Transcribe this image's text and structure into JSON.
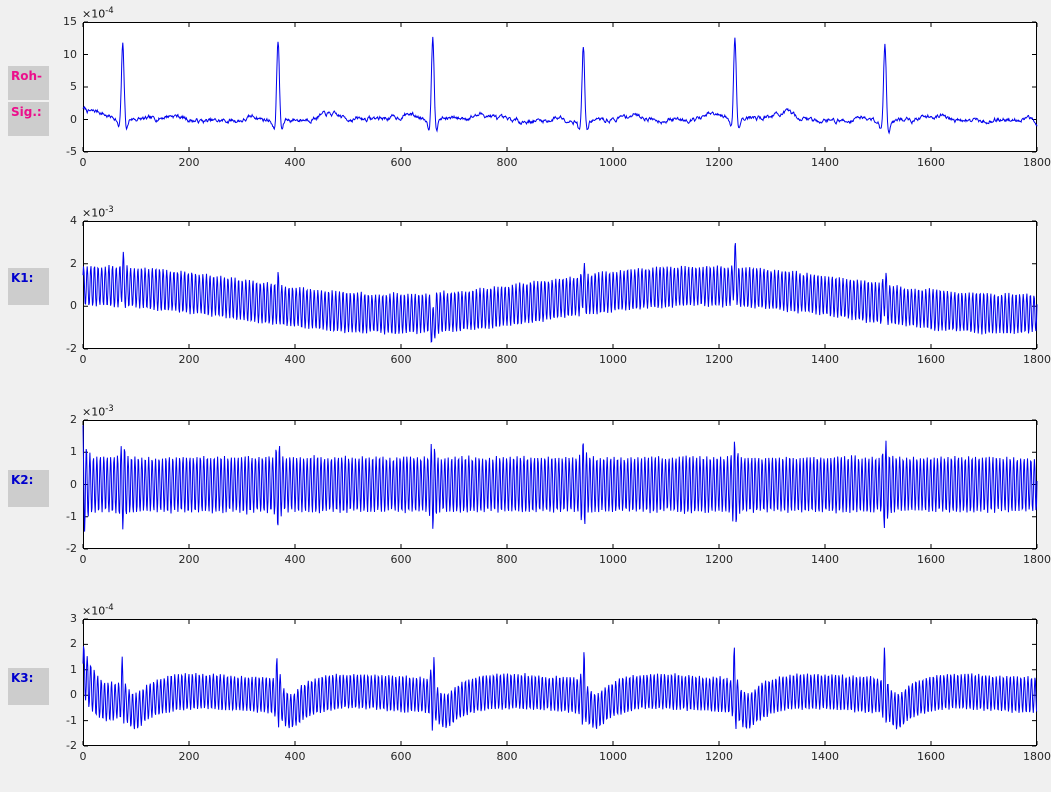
{
  "colors": {
    "figure_bg": "#f0f0f0",
    "axes_bg": "#ffffff",
    "frame": "#000000",
    "tick_label": "#262626",
    "label_bg": "#cdcdcd",
    "raw_label_color": "#ec0f8c",
    "channel_label_color": "#0000cd",
    "trace_color": "#0000ee"
  },
  "side_labels": [
    {
      "text": "Roh-",
      "color": "#ec0f8c"
    },
    {
      "text": "Sig.:",
      "color": "#ec0f8c"
    },
    {
      "text": "K1:",
      "color": "#0000cd"
    },
    {
      "text": "K2:",
      "color": "#0000cd"
    },
    {
      "text": "K3:",
      "color": "#0000cd"
    }
  ],
  "chart_data": [
    {
      "type": "line",
      "name": "Roh-Sig.",
      "line_color": "#0000ee",
      "x": {
        "min": 0,
        "max": 1800,
        "ticks": [
          0,
          200,
          400,
          600,
          800,
          1000,
          1200,
          1400,
          1600,
          1800
        ]
      },
      "y": {
        "min": -5,
        "max": 15,
        "ticks": [
          15,
          10,
          5,
          0,
          -5
        ],
        "exp_base": "×10",
        "exponent": "-4"
      },
      "grid": false,
      "signal": {
        "kind": "ecg",
        "seed": 7,
        "beat_positions": [
          75,
          368,
          660,
          944,
          1230,
          1513
        ],
        "r_amplitudes": [
          11.4,
          12.4,
          12.8,
          11.7,
          12.5,
          11.9
        ],
        "p_amp": 0.55,
        "q_amp": -1.5,
        "s_amp": -1.6,
        "t_amp": 0.85,
        "wander": [
          {
            "amp": 0.22,
            "period": 640,
            "phase": 2.0
          },
          {
            "amp": 0.12,
            "period": 300,
            "phase": 0.8
          }
        ],
        "noise": {
          "rho": 0.8,
          "scale": 0.5
        },
        "start": {
          "amp": 1.5,
          "tau": 22
        },
        "end_dip": {
          "amp": -1.0,
          "tau": 8
        }
      }
    },
    {
      "type": "line",
      "name": "K1",
      "line_color": "#0000ee",
      "x": {
        "min": 0,
        "max": 1800,
        "ticks": [
          0,
          200,
          400,
          600,
          800,
          1000,
          1200,
          1400,
          1600,
          1800
        ]
      },
      "y": {
        "min": -2,
        "max": 4,
        "ticks": [
          4,
          2,
          0,
          -2
        ],
        "exp_base": "×10",
        "exponent": "-3"
      },
      "grid": false,
      "signal": {
        "kind": "am_osc",
        "seed": 11,
        "carrier_period": 6.8,
        "carrier_phase": 0.6,
        "phase_jitter": 0.1,
        "amp": 0.95,
        "amp_noise": 0.1,
        "mean_offset": 0.3,
        "mean_amp": 0.65,
        "mean_period": 1160,
        "mean_center": 1170,
        "beat_positions": [
          75,
          368,
          660,
          944,
          1230,
          1513
        ],
        "spike_heights": [
          0.6,
          0.4,
          -0.85,
          0.6,
          1.0,
          0.7
        ],
        "spike_sigma": 2.2,
        "amp_bump": 0.2,
        "bump_sigma": 3.0
      }
    },
    {
      "type": "line",
      "name": "K2",
      "line_color": "#0000ee",
      "x": {
        "min": 0,
        "max": 1800,
        "ticks": [
          0,
          200,
          400,
          600,
          800,
          1000,
          1200,
          1400,
          1600,
          1800
        ]
      },
      "y": {
        "min": -2,
        "max": 2,
        "ticks": [
          2,
          1,
          0,
          -1,
          -2
        ],
        "exp_base": "×10",
        "exponent": "-3"
      },
      "grid": false,
      "signal": {
        "kind": "osc",
        "seed": 23,
        "carrier_period": 6.5,
        "carrier_phase": 1.7,
        "phase_jitter": 0.1,
        "amp": 0.86,
        "amp_noise": 0.08,
        "beat_positions": [
          75,
          368,
          660,
          944,
          1230,
          1513
        ],
        "beat_bump": 0.55,
        "bump_sigma": 3.5,
        "start": {
          "amp": 1.0,
          "tau": 6
        },
        "mean_noise": 0.05
      }
    },
    {
      "type": "line",
      "name": "K3",
      "line_color": "#0000ee",
      "x": {
        "min": 0,
        "max": 1800,
        "ticks": [
          0,
          200,
          400,
          600,
          800,
          1000,
          1200,
          1400,
          1600,
          1800
        ]
      },
      "y": {
        "min": -2,
        "max": 3,
        "ticks": [
          3,
          2,
          1,
          0,
          -1,
          -2
        ],
        "exp_base": "×10",
        "exponent": "-4"
      },
      "grid": false,
      "signal": {
        "kind": "osc_dips",
        "seed": 31,
        "carrier_period": 6.6,
        "carrier_phase": 0.2,
        "phase_jitter": 0.12,
        "amp": 0.7,
        "amp_noise": 0.1,
        "beat_positions": [
          75,
          368,
          660,
          944,
          1230,
          1513
        ],
        "spike_amp": [
          0.7,
          0.9,
          1.1,
          0.95,
          1.1,
          0.95
        ],
        "spike_sigma": 2.5,
        "spike_mean": {
          "amp": 0.5,
          "sigma": 2.5
        },
        "dip": {
          "amp": -0.5,
          "offset": 22,
          "sigma": 14
        },
        "dip2": {
          "amp": -0.22,
          "offset": 45,
          "sigma": 25
        },
        "hump": {
          "amp": 0.15,
          "offset": 140,
          "sigma": 60
        },
        "start_mean": {
          "amp": 1.1,
          "tau": 14
        },
        "start_amp": {
          "amp": 0.35,
          "tau": 28
        },
        "early_dip": {
          "amp": -0.3,
          "center": 45,
          "sigma": 18
        }
      }
    }
  ]
}
